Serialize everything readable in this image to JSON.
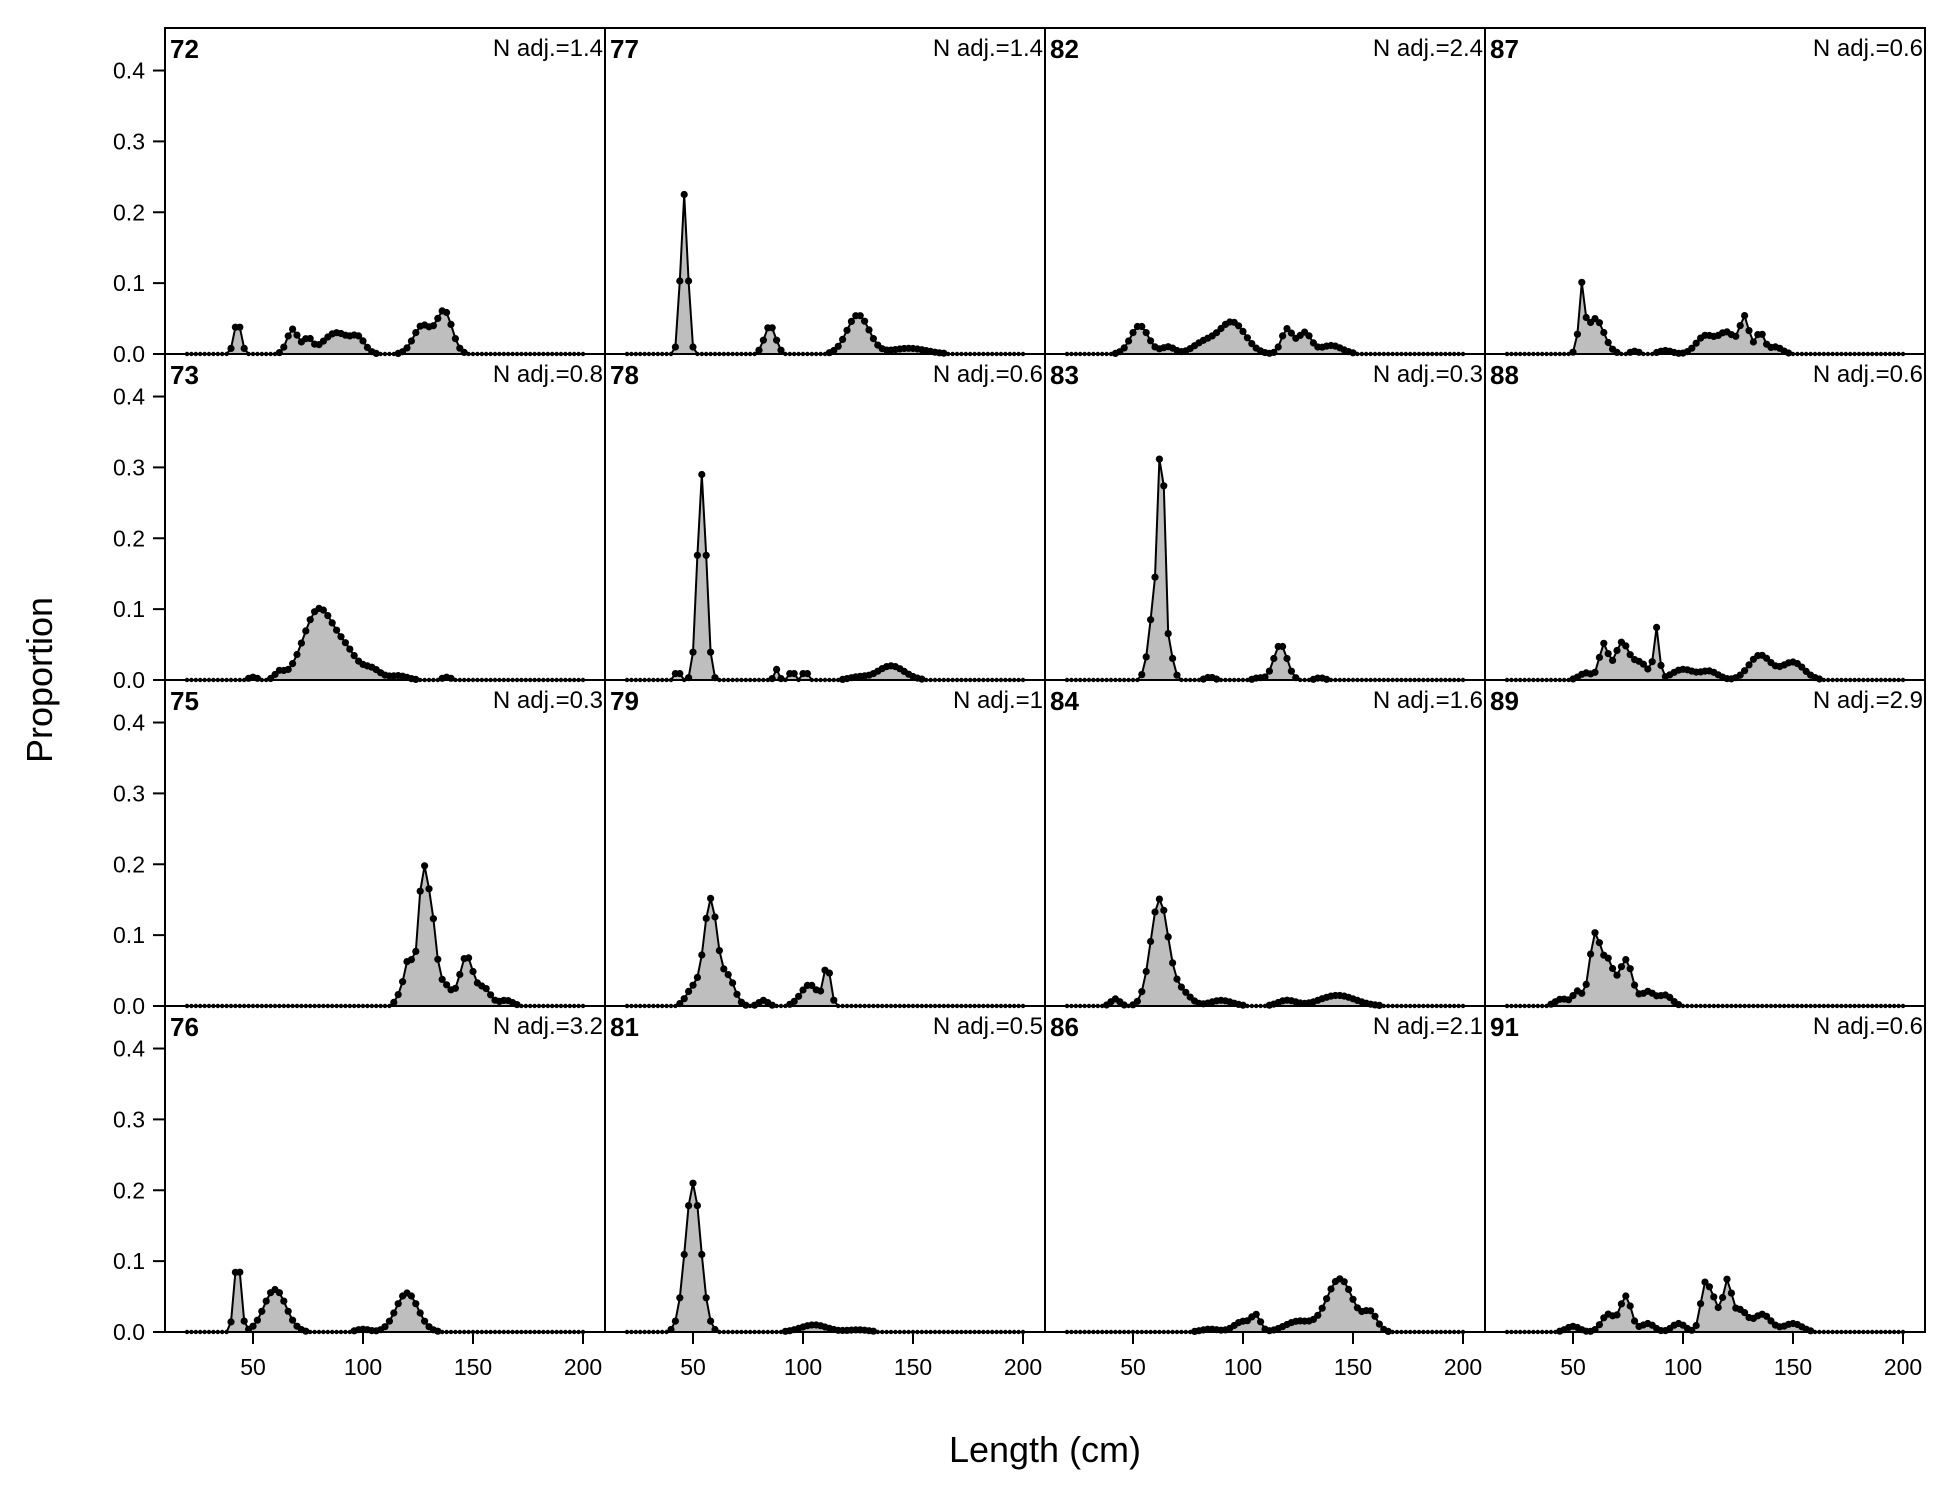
{
  "chart_data": {
    "type": "area",
    "xlabel": "Length (cm)",
    "ylabel": "Proportion",
    "xlim": [
      10,
      210
    ],
    "ylim": [
      0,
      0.46
    ],
    "x_ticks": [
      50,
      100,
      150,
      200
    ],
    "y_ticks": [
      "0.0",
      "0.1",
      "0.2",
      "0.3",
      "0.4"
    ],
    "x_range": [
      20,
      200
    ],
    "x_step": 2,
    "layout": {
      "rows": 4,
      "cols": 4,
      "order": "column-major"
    },
    "style": {
      "fill": "#bebebe",
      "line": "#000000"
    },
    "panels": [
      {
        "label": "72",
        "nadj": "N adj.=1.4",
        "peaks": [
          [
            43,
            0.046,
            1.6
          ],
          [
            68,
            0.035,
            2.5
          ],
          [
            75,
            0.02,
            2
          ],
          [
            88,
            0.03,
            6
          ],
          [
            98,
            0.018,
            3
          ],
          [
            127,
            0.04,
            4
          ],
          [
            137,
            0.06,
            3.5
          ]
        ]
      },
      {
        "label": "73",
        "nadj": "N adj.=0.8",
        "peaks": [
          [
            50,
            0.004,
            2
          ],
          [
            62,
            0.01,
            2
          ],
          [
            80,
            0.1,
            7
          ],
          [
            93,
            0.03,
            5
          ],
          [
            104,
            0.015,
            4
          ],
          [
            116,
            0.006,
            4
          ],
          [
            138,
            0.004,
            2
          ]
        ]
      },
      {
        "label": "75",
        "nadj": "N adj.=0.3",
        "peaks": [
          [
            117,
            0.015,
            2
          ],
          [
            121,
            0.065,
            2
          ],
          [
            127,
            0.17,
            2
          ],
          [
            131,
            0.12,
            2.2
          ],
          [
            137,
            0.03,
            3
          ],
          [
            147,
            0.07,
            3
          ],
          [
            155,
            0.025,
            3
          ],
          [
            165,
            0.008,
            3
          ]
        ]
      },
      {
        "label": "76",
        "nadj": "N adj.=3.2",
        "peaks": [
          [
            43,
            0.105,
            1.5
          ],
          [
            60,
            0.06,
            5
          ],
          [
            120,
            0.055,
            5
          ],
          [
            100,
            0.004,
            3
          ]
        ]
      },
      {
        "label": "77",
        "nadj": "N adj.=1.4",
        "peaks": [
          [
            46,
            0.225,
            1.6
          ],
          [
            85,
            0.04,
            2.5
          ],
          [
            125,
            0.055,
            5
          ],
          [
            148,
            0.008,
            8
          ]
        ]
      },
      {
        "label": "78",
        "nadj": "N adj.=0.6",
        "peaks": [
          [
            43,
            0.015,
            1
          ],
          [
            54,
            0.29,
            2
          ],
          [
            88,
            0.015,
            1
          ],
          [
            95,
            0.015,
            1
          ],
          [
            101,
            0.015,
            1
          ],
          [
            140,
            0.02,
            6
          ],
          [
            125,
            0.004,
            4
          ]
        ]
      },
      {
        "label": "79",
        "nadj": "N adj.=1",
        "peaks": [
          [
            50,
            0.025,
            3
          ],
          [
            58,
            0.15,
            3
          ],
          [
            66,
            0.04,
            3
          ],
          [
            82,
            0.008,
            2
          ],
          [
            103,
            0.03,
            4
          ],
          [
            111,
            0.055,
            1.5
          ]
        ]
      },
      {
        "label": "81",
        "nadj": "N adj.=0.5",
        "peaks": [
          [
            50,
            0.21,
            3.5
          ],
          [
            105,
            0.01,
            6
          ],
          [
            125,
            0.003,
            5
          ]
        ]
      },
      {
        "label": "82",
        "nadj": "N adj.=2.4",
        "peaks": [
          [
            53,
            0.04,
            4
          ],
          [
            66,
            0.01,
            3
          ],
          [
            82,
            0.015,
            5
          ],
          [
            95,
            0.045,
            6
          ],
          [
            120,
            0.035,
            2.5
          ],
          [
            128,
            0.03,
            3
          ],
          [
            140,
            0.012,
            5
          ]
        ]
      },
      {
        "label": "83",
        "nadj": "N adj.=0.3",
        "peaks": [
          [
            56,
            0.015,
            1.5
          ],
          [
            60,
            0.13,
            2
          ],
          [
            63,
            0.32,
            1.2
          ],
          [
            66,
            0.05,
            2
          ],
          [
            85,
            0.004,
            2
          ],
          [
            117,
            0.05,
            3
          ],
          [
            107,
            0.003,
            2
          ],
          [
            135,
            0.003,
            2
          ]
        ]
      },
      {
        "label": "84",
        "nadj": "N adj.=1.6",
        "peaks": [
          [
            42,
            0.01,
            2
          ],
          [
            62,
            0.15,
            4
          ],
          [
            72,
            0.02,
            4
          ],
          [
            90,
            0.008,
            5
          ],
          [
            120,
            0.008,
            4
          ],
          [
            143,
            0.015,
            8
          ]
        ]
      },
      {
        "label": "86",
        "nadj": "N adj.=2.1",
        "peaks": [
          [
            85,
            0.004,
            4
          ],
          [
            100,
            0.015,
            4
          ],
          [
            106,
            0.02,
            2
          ],
          [
            125,
            0.015,
            6
          ],
          [
            144,
            0.075,
            6
          ],
          [
            158,
            0.025,
            3
          ]
        ]
      },
      {
        "label": "87",
        "nadj": "N adj.=0.6",
        "peaks": [
          [
            54,
            0.085,
            1.2
          ],
          [
            60,
            0.05,
            4
          ],
          [
            78,
            0.004,
            2
          ],
          [
            92,
            0.005,
            3
          ],
          [
            110,
            0.025,
            4
          ],
          [
            120,
            0.03,
            4
          ],
          [
            128,
            0.05,
            2
          ],
          [
            135,
            0.03,
            2
          ],
          [
            142,
            0.01,
            3
          ]
        ]
      },
      {
        "label": "88",
        "nadj": "N adj.=0.6",
        "peaks": [
          [
            56,
            0.01,
            3
          ],
          [
            64,
            0.05,
            2
          ],
          [
            72,
            0.05,
            3
          ],
          [
            80,
            0.025,
            4
          ],
          [
            88,
            0.07,
            1.2
          ],
          [
            100,
            0.015,
            5
          ],
          [
            112,
            0.012,
            4
          ],
          [
            135,
            0.035,
            5
          ],
          [
            150,
            0.025,
            5
          ]
        ]
      },
      {
        "label": "89",
        "nadj": "N adj.=2.9",
        "peaks": [
          [
            45,
            0.01,
            3
          ],
          [
            52,
            0.02,
            2
          ],
          [
            60,
            0.1,
            2.5
          ],
          [
            66,
            0.06,
            2.5
          ],
          [
            74,
            0.065,
            3
          ],
          [
            84,
            0.02,
            3
          ],
          [
            92,
            0.015,
            3
          ]
        ]
      },
      {
        "label": "91",
        "nadj": "N adj.=0.6",
        "peaks": [
          [
            50,
            0.008,
            3
          ],
          [
            66,
            0.025,
            3
          ],
          [
            74,
            0.05,
            2.5
          ],
          [
            84,
            0.012,
            3
          ],
          [
            98,
            0.012,
            3
          ],
          [
            110,
            0.065,
            2
          ],
          [
            114,
            0.04,
            2
          ],
          [
            120,
            0.07,
            2
          ],
          [
            126,
            0.03,
            3
          ],
          [
            136,
            0.025,
            4
          ],
          [
            150,
            0.012,
            4
          ]
        ]
      }
    ]
  }
}
